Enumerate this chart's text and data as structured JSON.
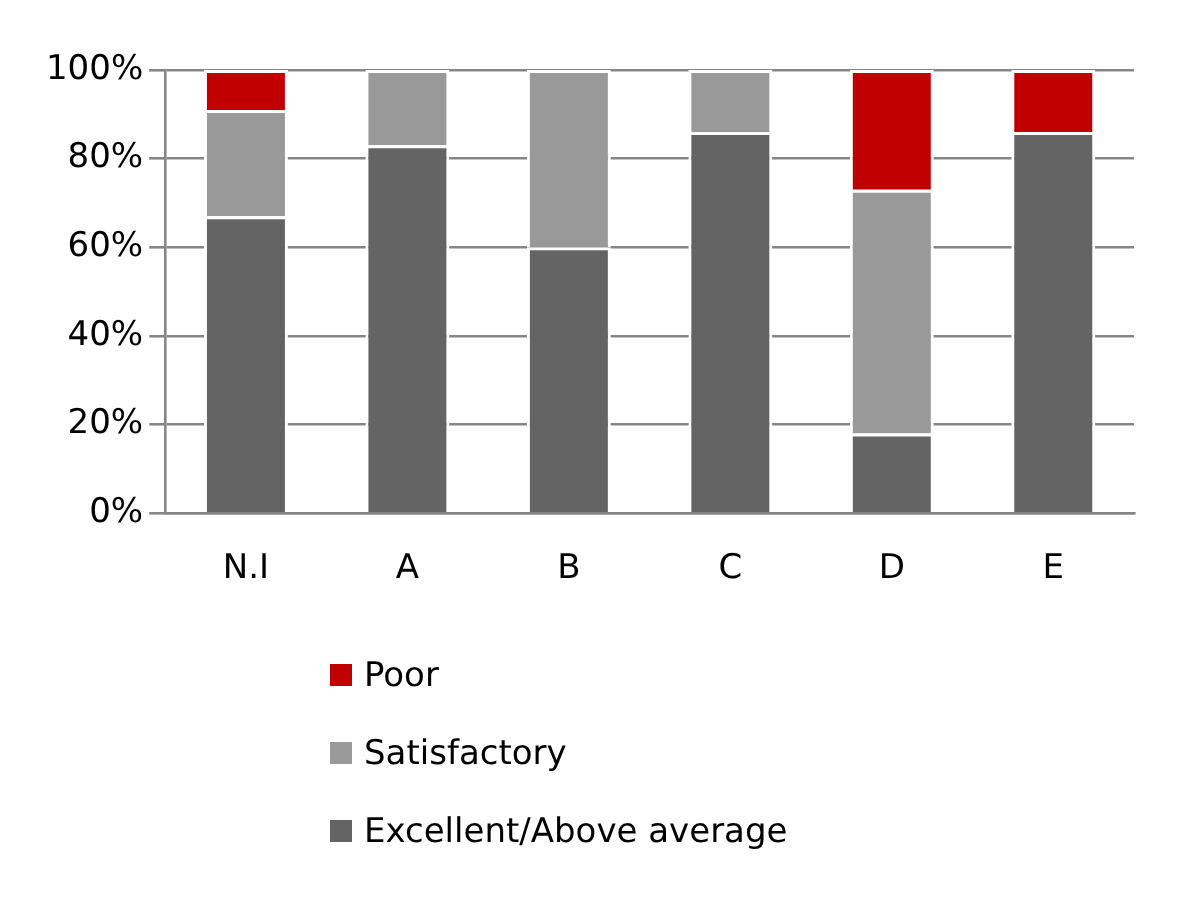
{
  "chart_data": {
    "type": "bar",
    "stacked": true,
    "categories": [
      "N.I",
      "A",
      "B",
      "C",
      "D",
      "E"
    ],
    "series": [
      {
        "name": "Excellent/Above average",
        "color": "#646464",
        "values": [
          67,
          83,
          60,
          86,
          18,
          86
        ]
      },
      {
        "name": "Satisfactory",
        "color": "#999999",
        "values": [
          24,
          17,
          40,
          14,
          55,
          0
        ]
      },
      {
        "name": "Poor",
        "color": "#c00000",
        "values": [
          9,
          0,
          0,
          0,
          27,
          14
        ]
      }
    ],
    "ylim": [
      0,
      100
    ],
    "yticks": [
      {
        "value": 0,
        "label": "0%"
      },
      {
        "value": 20,
        "label": "20%"
      },
      {
        "value": 40,
        "label": "40%"
      },
      {
        "value": 60,
        "label": "60%"
      },
      {
        "value": 80,
        "label": "80%"
      },
      {
        "value": 100,
        "label": "100%"
      }
    ],
    "grid": "y",
    "legend": "bottom"
  }
}
